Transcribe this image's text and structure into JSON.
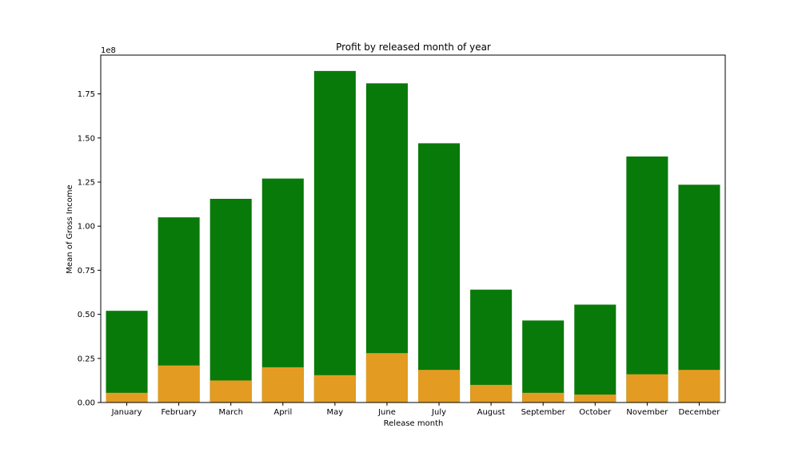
{
  "chart_data": {
    "type": "bar",
    "title": "Profit by released month of year",
    "xlabel": "Release month",
    "ylabel": "Mean of Gross Income",
    "offset_label": "1e8",
    "scale": 100000000,
    "categories": [
      "January",
      "February",
      "March",
      "April",
      "May",
      "June",
      "July",
      "August",
      "September",
      "October",
      "November",
      "December"
    ],
    "series": [
      {
        "color": "#087a0a",
        "values": [
          52000000,
          105000000,
          115500000,
          127000000,
          188000000,
          181000000,
          147000000,
          64000000,
          46500000,
          55500000,
          139500000,
          123500000
        ]
      },
      {
        "color": "#e39c21",
        "values": [
          5500000,
          21000000,
          12500000,
          20000000,
          15500000,
          28000000,
          18500000,
          10000000,
          5500000,
          4500000,
          16000000,
          18500000
        ]
      }
    ],
    "ylim": [
      0,
      197000000
    ],
    "yticks": [
      "0.00",
      "0.25",
      "0.50",
      "0.75",
      "1.00",
      "1.25",
      "1.50",
      "1.75"
    ],
    "ytick_values": [
      0,
      25000000,
      50000000,
      75000000,
      100000000,
      125000000,
      150000000,
      175000000
    ],
    "grid": false,
    "legend": "none"
  }
}
